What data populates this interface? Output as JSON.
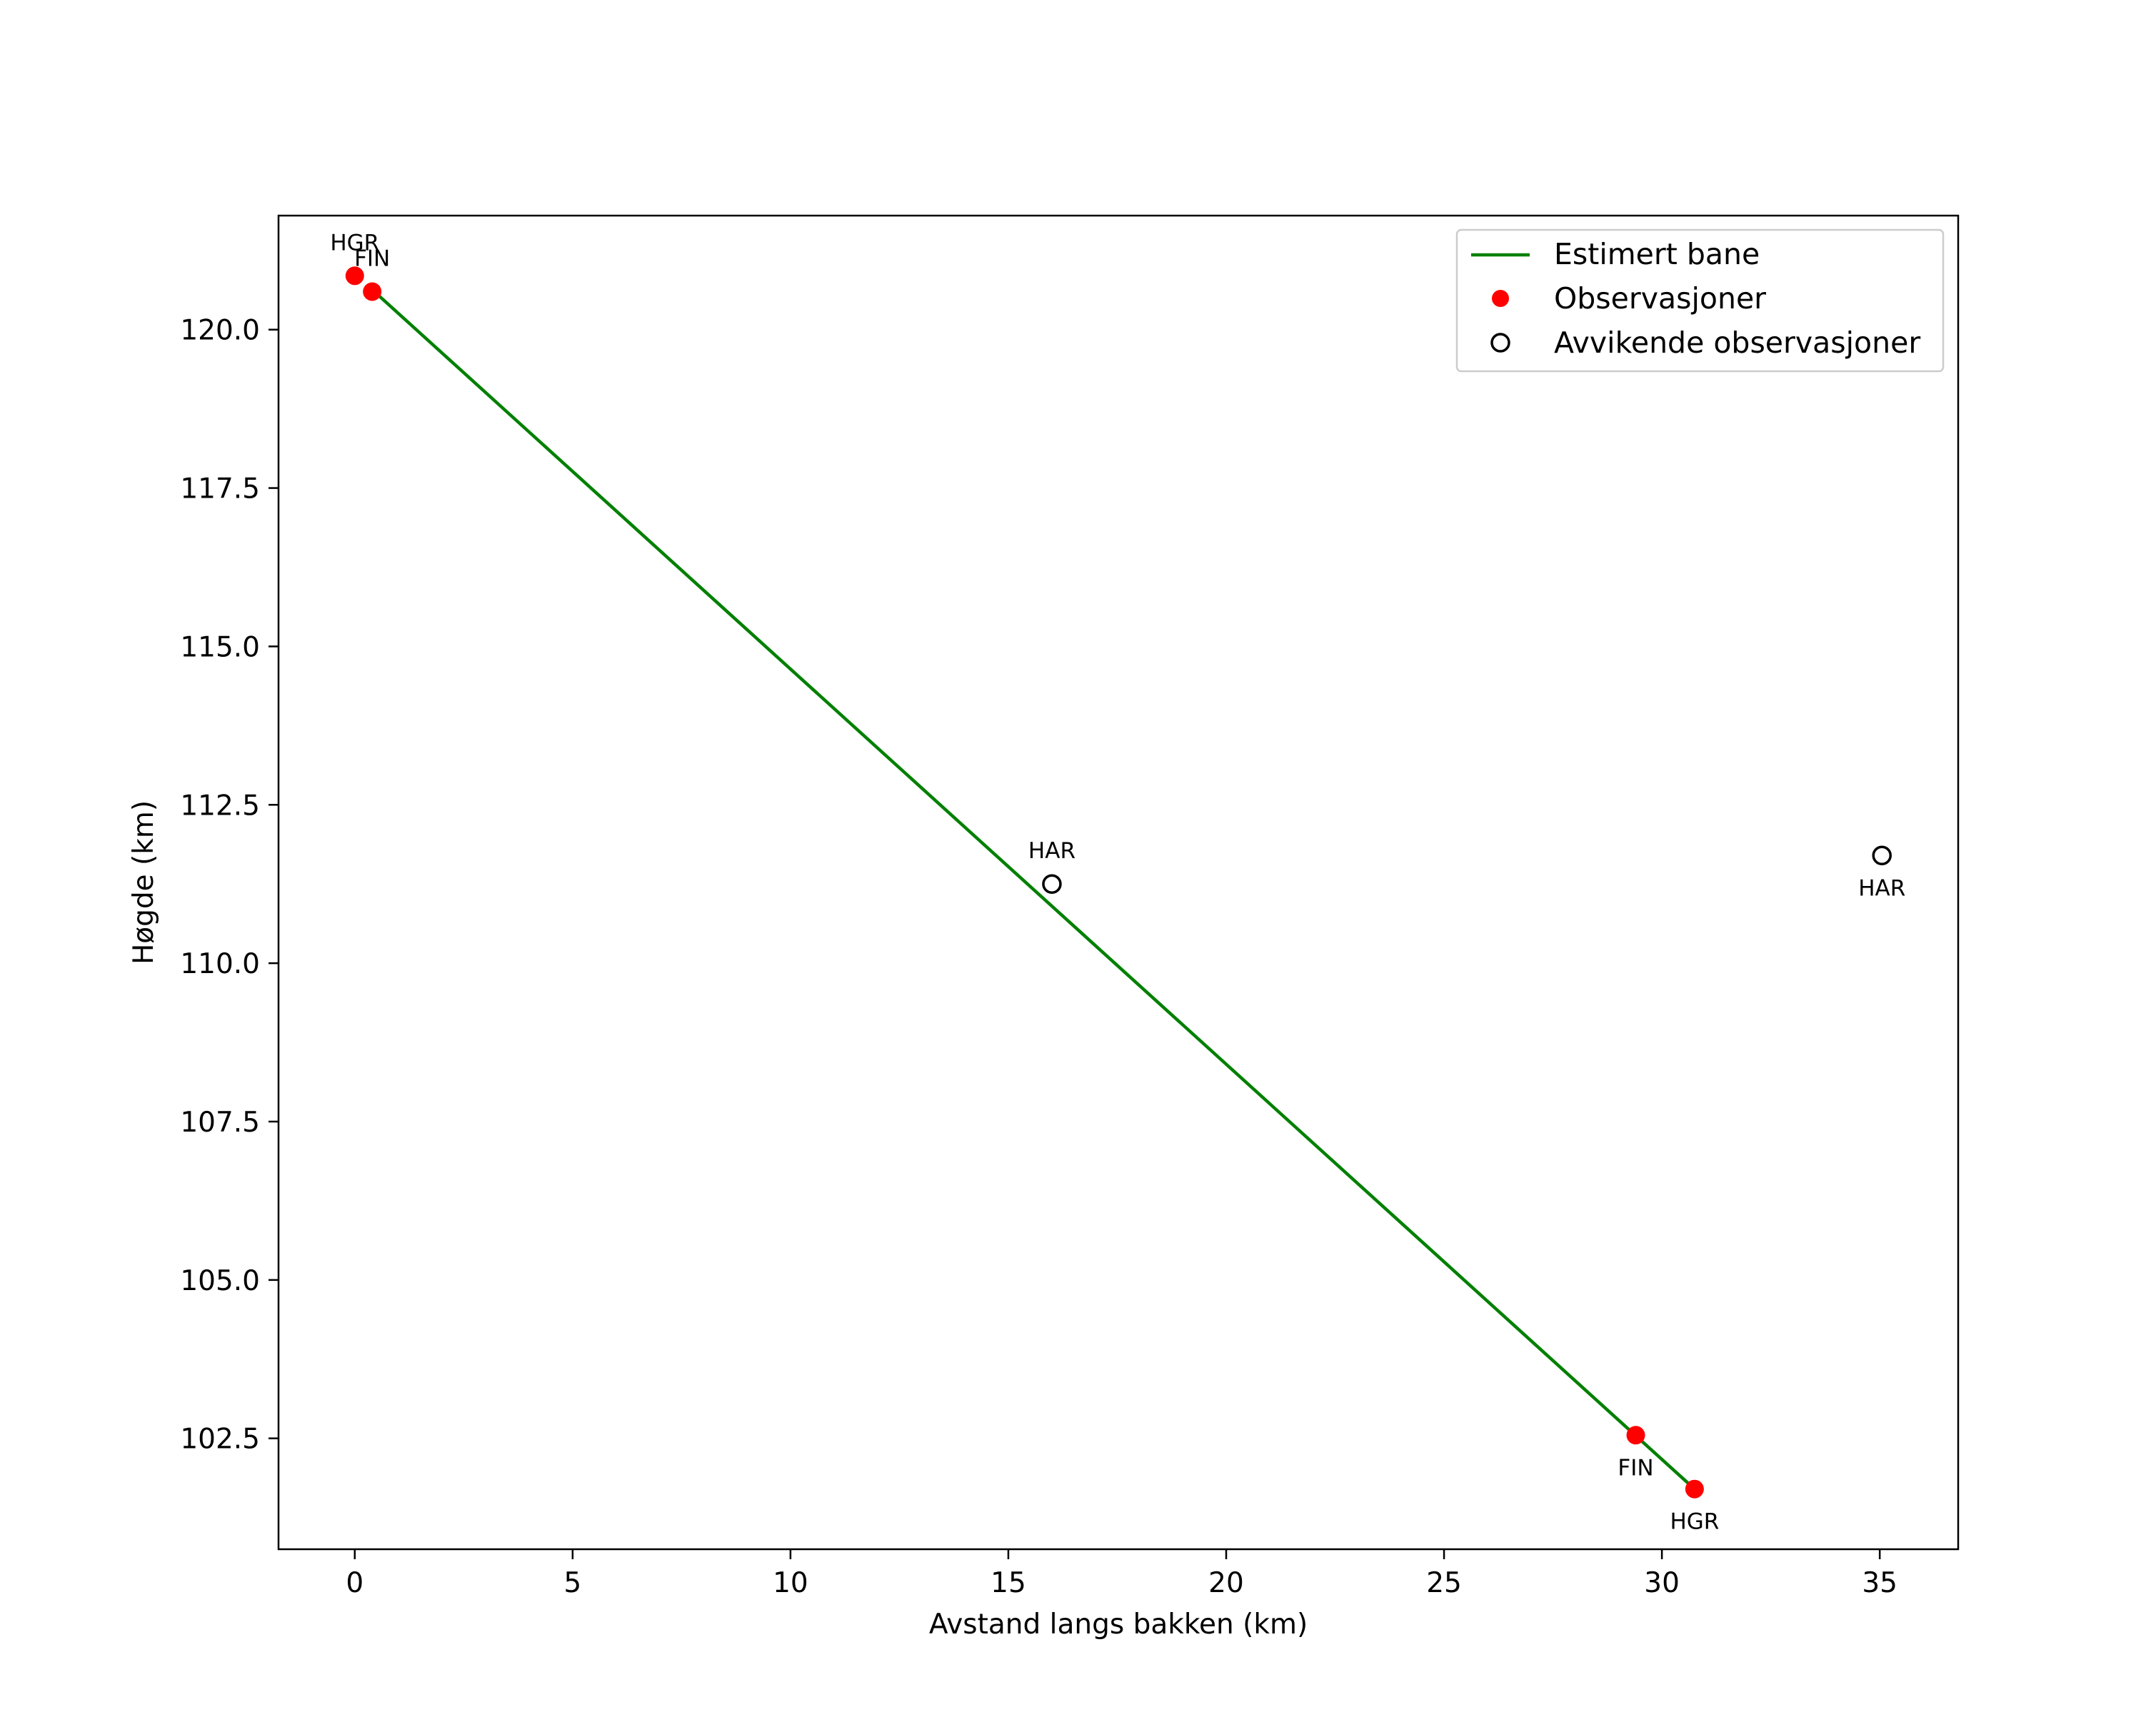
{
  "chart_data": {
    "type": "line",
    "title": "",
    "xlabel": "Avstand langs bakken (km)",
    "ylabel": "Høgde (km)",
    "xlim": [
      -1.75,
      36.8
    ],
    "ylim": [
      100.75,
      121.8
    ],
    "x_ticks": [
      0,
      5,
      10,
      15,
      20,
      25,
      30,
      35
    ],
    "y_ticks": [
      102.5,
      105.0,
      107.5,
      110.0,
      112.5,
      115.0,
      117.5,
      120.0
    ],
    "x_tick_labels": [
      "0",
      "5",
      "10",
      "15",
      "20",
      "25",
      "30",
      "35"
    ],
    "y_tick_labels": [
      "102.5",
      "105.0",
      "107.5",
      "110.0",
      "112.5",
      "115.0",
      "117.5",
      "120.0"
    ],
    "grid": false,
    "legend_position": "top-right",
    "series": [
      {
        "name": "Estimert bane",
        "kind": "line",
        "color": "#008000",
        "x": [
          0.45,
          30.75
        ],
        "y": [
          120.6,
          101.7
        ]
      },
      {
        "name": "Observasjoner",
        "kind": "marker-filled",
        "color": "#ff0000",
        "points": [
          {
            "x": 0.0,
            "y": 120.85,
            "label": "HGR",
            "label_pos": "above"
          },
          {
            "x": 0.4,
            "y": 120.6,
            "label": "FIN",
            "label_pos": "above"
          },
          {
            "x": 29.4,
            "y": 102.55,
            "label": "FIN",
            "label_pos": "below"
          },
          {
            "x": 30.75,
            "y": 101.7,
            "label": "HGR",
            "label_pos": "below"
          }
        ]
      },
      {
        "name": "Avvikende observasjoner",
        "kind": "marker-open",
        "color": "#000000",
        "points": [
          {
            "x": 16.0,
            "y": 111.25,
            "label": "HAR",
            "label_pos": "above"
          },
          {
            "x": 35.05,
            "y": 111.7,
            "label": "HAR",
            "label_pos": "below"
          }
        ]
      }
    ]
  }
}
